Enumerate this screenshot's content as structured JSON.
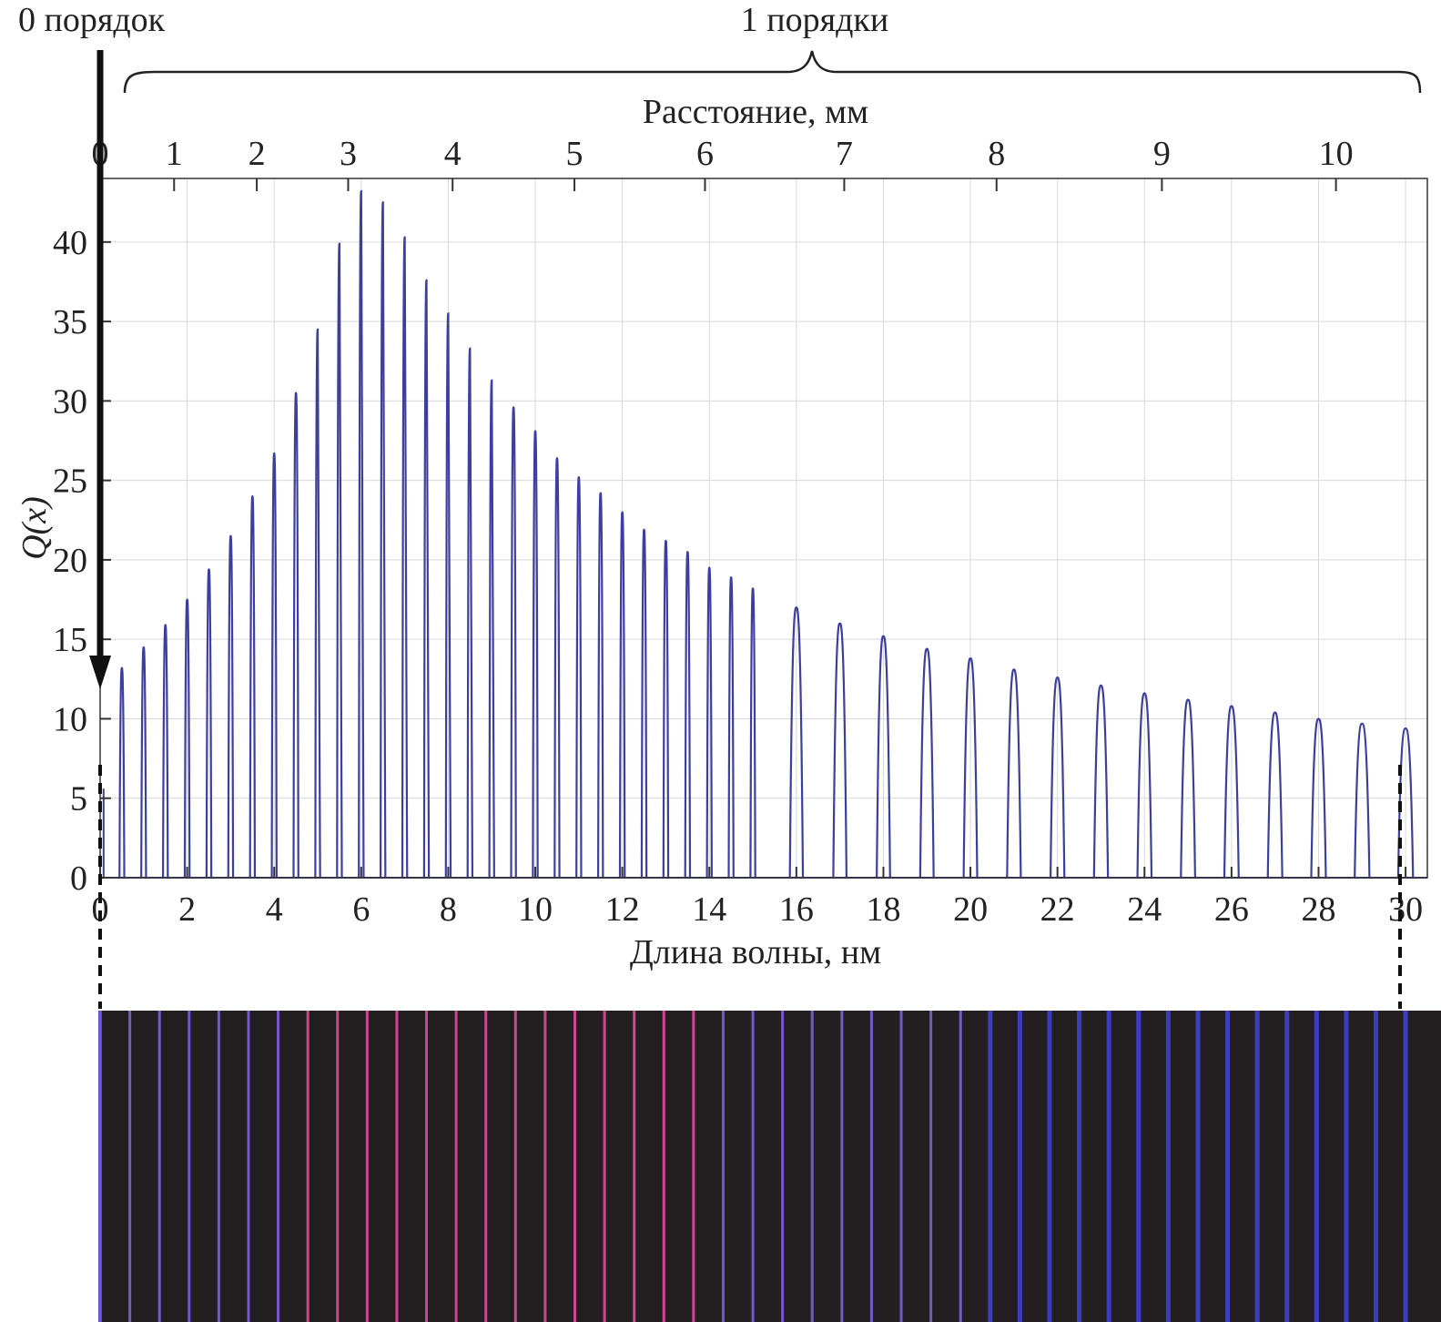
{
  "annotations": {
    "zero_order": "0 порядок",
    "first_orders": "1 порядки"
  },
  "chart_data": {
    "type": "line",
    "top_axis": {
      "label": "Расстояние, мм",
      "ticks": [
        0,
        1,
        2,
        3,
        4,
        5,
        6,
        7,
        8,
        9,
        10
      ],
      "tick_wavelengths": [
        0,
        1.7,
        3.6,
        5.7,
        8.1,
        10.9,
        13.9,
        17.1,
        20.6,
        24.4,
        28.4
      ]
    },
    "xlabel": "Длина волны, нм",
    "ylabel": "Q(x)",
    "xlim": [
      0,
      30.5
    ],
    "ylim": [
      0,
      44
    ],
    "xticks": [
      0,
      2,
      4,
      6,
      8,
      10,
      12,
      14,
      16,
      18,
      20,
      22,
      24,
      26,
      28,
      30
    ],
    "yticks": [
      0,
      5,
      10,
      15,
      20,
      25,
      30,
      35,
      40
    ],
    "grid": true,
    "series": [
      {
        "x": [
          0.5,
          1.0,
          1.5,
          2.0,
          2.5,
          3.0,
          3.5,
          4.0,
          4.5,
          5.0,
          5.5,
          6.0,
          6.5,
          7.0,
          7.5,
          8.0,
          8.5,
          9.0,
          9.5,
          10.0,
          10.5,
          11.0,
          11.5,
          12.0,
          12.5,
          13.0,
          13.5,
          14.0,
          14.5,
          15.0,
          16.0,
          17.0,
          18.0,
          19.0,
          20.0,
          21.0,
          22.0,
          23.0,
          24.0,
          25.0,
          26.0,
          27.0,
          28.0,
          29.0,
          30.0
        ],
        "values": [
          13.2,
          14.5,
          15.9,
          17.5,
          19.4,
          21.5,
          24.0,
          26.7,
          30.5,
          34.5,
          39.9,
          43.2,
          42.5,
          40.3,
          37.6,
          35.5,
          33.3,
          31.3,
          29.6,
          28.1,
          26.4,
          25.2,
          24.2,
          23.0,
          21.9,
          21.2,
          20.5,
          19.5,
          18.9,
          18.2,
          17.0,
          16.0,
          15.2,
          14.4,
          13.8,
          13.1,
          12.6,
          12.1,
          11.6,
          11.2,
          10.8,
          10.4,
          10.0,
          9.7,
          9.4
        ]
      }
    ],
    "line_color": "#3d3f9e",
    "spectrum_strip": {
      "background": "#231f20",
      "colors": [
        "#7a5ad6",
        "#d8489a",
        "#3e3ec8"
      ]
    }
  }
}
